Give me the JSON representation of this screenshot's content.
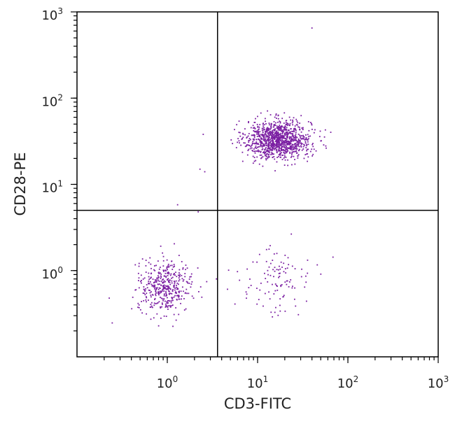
{
  "chart_data": {
    "type": "scatter",
    "title": "",
    "xlabel": "CD3-FITC",
    "ylabel": "CD28-PE",
    "x_scale": "log",
    "y_scale": "log",
    "xlim": [
      0.1,
      1000
    ],
    "ylim": [
      0.1,
      1000
    ],
    "x_ticks": [
      {
        "value": 1,
        "base": "10",
        "exp": "0"
      },
      {
        "value": 10,
        "base": "10",
        "exp": "1"
      },
      {
        "value": 100,
        "base": "10",
        "exp": "2"
      },
      {
        "value": 1000,
        "base": "10",
        "exp": "3"
      }
    ],
    "y_ticks": [
      {
        "value": 1,
        "base": "10",
        "exp": "0"
      },
      {
        "value": 10,
        "base": "10",
        "exp": "1"
      },
      {
        "value": 100,
        "base": "10",
        "exp": "2"
      },
      {
        "value": 1000,
        "base": "10",
        "exp": "3"
      }
    ],
    "grid": false,
    "gates": {
      "x": 3.6,
      "y": 5.0
    },
    "point_color": "#7b1fa2",
    "frame_color": "#000000",
    "clusters": [
      {
        "quadrant": "upper-right",
        "center": [
          17,
          33
        ],
        "spread_log": [
          0.18,
          0.11
        ],
        "count": 1100
      },
      {
        "quadrant": "lower-left",
        "center": [
          0.95,
          0.65
        ],
        "spread_log": [
          0.15,
          0.15
        ],
        "count": 420
      },
      {
        "quadrant": "lower-right",
        "center": [
          16,
          0.75
        ],
        "spread_log": [
          0.2,
          0.2
        ],
        "count": 110
      }
    ],
    "outlier_points": [
      [
        40,
        650
      ],
      [
        2.5,
        38
      ],
      [
        2.3,
        15
      ],
      [
        2.6,
        14
      ],
      [
        1.3,
        5.8
      ],
      [
        2.2,
        4.8
      ],
      [
        3.5,
        0.8
      ]
    ]
  }
}
